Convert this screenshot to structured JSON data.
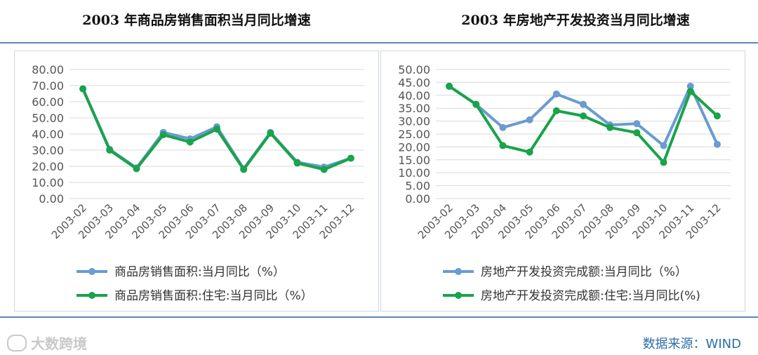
{
  "header": {
    "left_title": "2003 年商品房销售面积当月同比增速",
    "right_title": "2003 年房地产开发投资当月同比增速"
  },
  "footer": {
    "source": "数据来源：WIND",
    "watermark": "大数跨境",
    "watermark_icon": "logo-icon"
  },
  "colors": {
    "blue": "#6a9bd1",
    "green": "#19a34a",
    "grid": "#d9d9d9",
    "rule": "#5b87b8"
  },
  "chart_data": [
    {
      "type": "line",
      "title": "2003 年商品房销售面积当月同比增速",
      "categories": [
        "2003-02",
        "2003-03",
        "2003-04",
        "2003-05",
        "2003-06",
        "2003-07",
        "2003-08",
        "2003-09",
        "2003-10",
        "2003-11",
        "2003-12"
      ],
      "y_ticks": [
        "0.00",
        "10.00",
        "20.00",
        "30.00",
        "40.00",
        "50.00",
        "60.00",
        "70.00",
        "80.00"
      ],
      "ylim": [
        0,
        80
      ],
      "series": [
        {
          "name": "商品房销售面积:当月同比（%）",
          "color": "#6a9bd1",
          "values": [
            68,
            30.5,
            19,
            41,
            37,
            44.5,
            18.5,
            41,
            22.5,
            19.5,
            25
          ]
        },
        {
          "name": "商品房销售面积:住宅:当月同比（%）",
          "color": "#19a34a",
          "values": [
            68,
            30,
            18.5,
            39.5,
            35,
            43,
            18,
            40.5,
            22,
            18,
            25
          ]
        }
      ],
      "grid": true,
      "legend_position": "bottom"
    },
    {
      "type": "line",
      "title": "2003 年房地产开发投资当月同比增速",
      "categories": [
        "2003-02",
        "2003-03",
        "2003-04",
        "2003-05",
        "2003-06",
        "2003-07",
        "2003-08",
        "2003-09",
        "2003-10",
        "2003-11",
        "2003-12"
      ],
      "y_ticks": [
        "0.00",
        "5.00",
        "10.00",
        "15.00",
        "20.00",
        "25.00",
        "30.00",
        "35.00",
        "40.00",
        "45.00",
        "50.00"
      ],
      "ylim": [
        0,
        50
      ],
      "series": [
        {
          "name": "房地产开发投资完成额:当月同比（%）",
          "color": "#6a9bd1",
          "values": [
            43.5,
            36.5,
            27.5,
            30.5,
            40.5,
            36.5,
            28.5,
            29,
            20.5,
            43.5,
            21
          ]
        },
        {
          "name": "房地产开发投资完成额:住宅:当月同比(%)",
          "color": "#19a34a",
          "values": [
            43.5,
            36.5,
            20.5,
            18,
            34,
            32,
            27.5,
            25.5,
            14,
            41.5,
            32
          ]
        }
      ],
      "grid": true,
      "legend_position": "bottom"
    }
  ]
}
